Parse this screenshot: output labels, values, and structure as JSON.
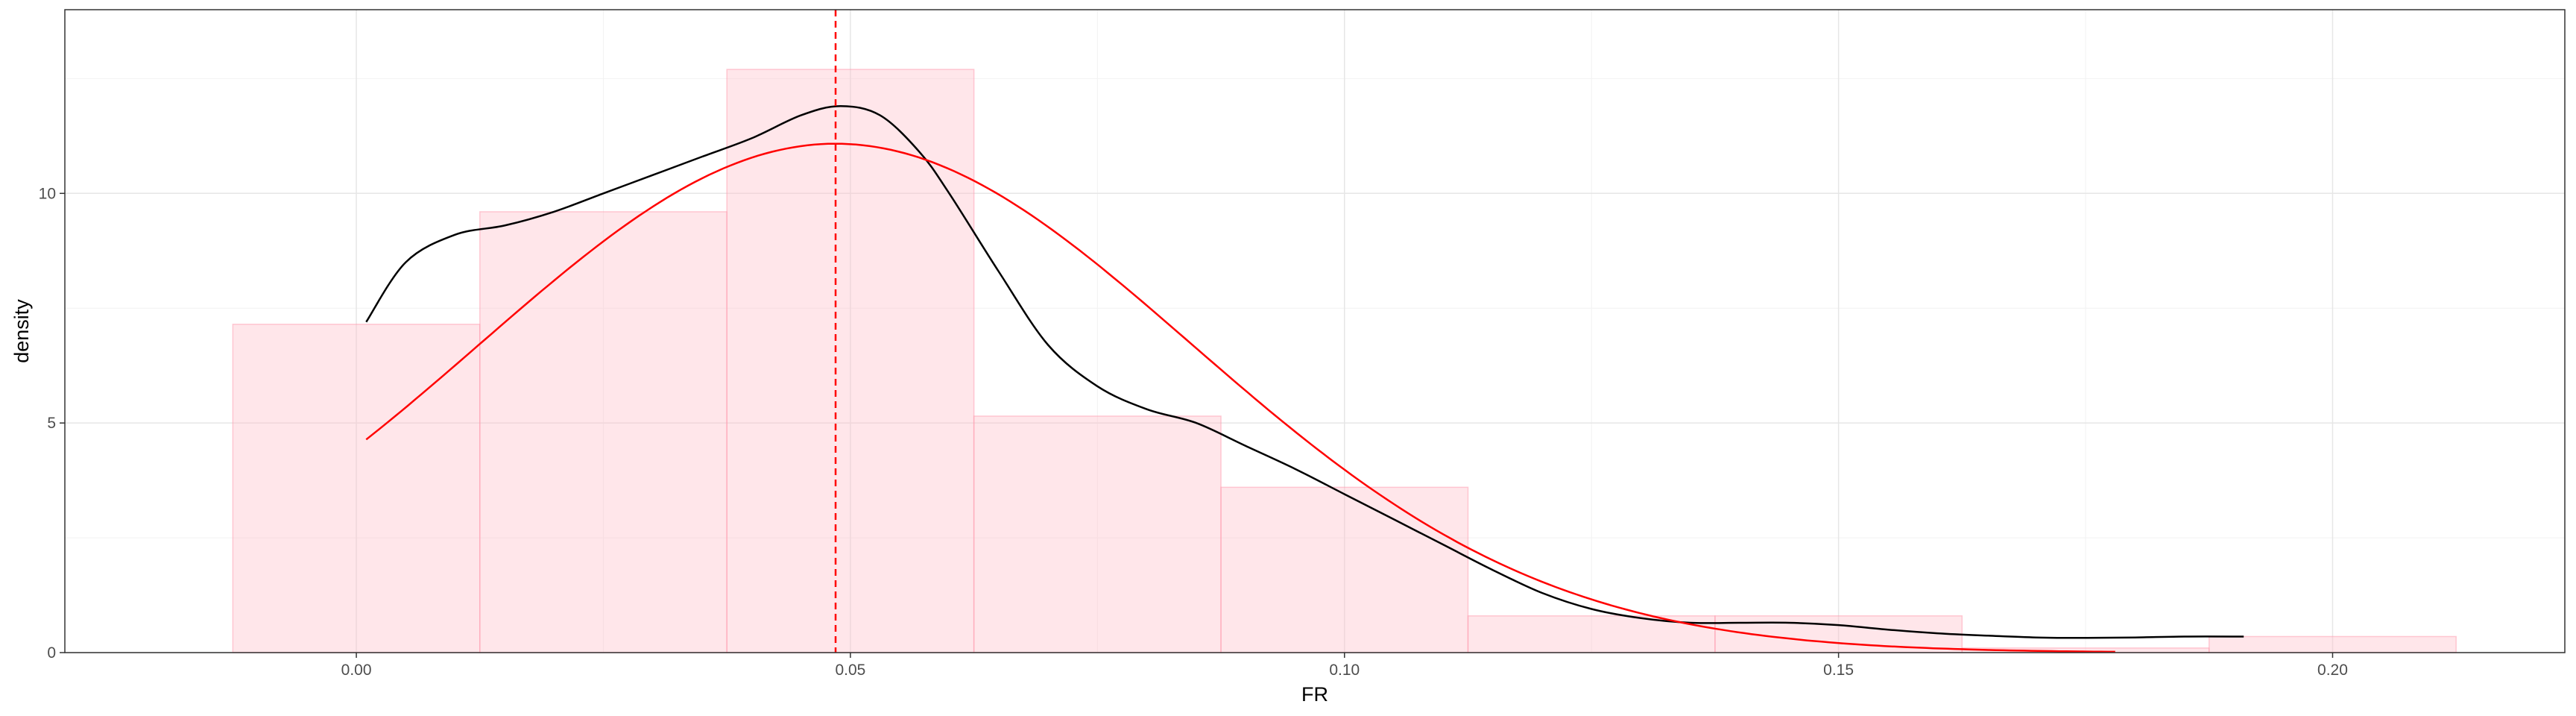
{
  "chart_data": {
    "type": "bar",
    "title": "",
    "xlabel": "FR",
    "ylabel": "density",
    "xlim": [
      -0.0295,
      0.2235
    ],
    "ylim": [
      0,
      14.0
    ],
    "grid": true,
    "legend": "none",
    "x_ticks": [
      0.0,
      0.05,
      0.1,
      0.15,
      0.2
    ],
    "x_tick_labels": [
      "0.00",
      "0.05",
      "0.10",
      "0.15",
      "0.20"
    ],
    "y_ticks": [
      0,
      5,
      10
    ],
    "y_tick_labels": [
      "0",
      "5",
      "10"
    ],
    "histogram": {
      "bin_width": 0.025,
      "fill": "#ffc0cb",
      "bins": [
        {
          "x0": -0.0125,
          "x1": 0.0125,
          "density": 7.15
        },
        {
          "x0": 0.0125,
          "x1": 0.0375,
          "density": 9.6
        },
        {
          "x0": 0.0375,
          "x1": 0.0625,
          "density": 12.7
        },
        {
          "x0": 0.0625,
          "x1": 0.0875,
          "density": 5.15
        },
        {
          "x0": 0.0875,
          "x1": 0.1125,
          "density": 3.6
        },
        {
          "x0": 0.1125,
          "x1": 0.1375,
          "density": 0.8
        },
        {
          "x0": 0.1375,
          "x1": 0.1625,
          "density": 0.8
        },
        {
          "x0": 0.1625,
          "x1": 0.1875,
          "density": 0.1
        },
        {
          "x0": 0.1875,
          "x1": 0.2125,
          "density": 0.35
        }
      ]
    },
    "kde_curve": {
      "color": "#000000",
      "x": [
        0.001,
        0.005,
        0.01,
        0.015,
        0.02,
        0.025,
        0.03,
        0.035,
        0.04,
        0.045,
        0.049,
        0.053,
        0.057,
        0.06,
        0.065,
        0.07,
        0.075,
        0.08,
        0.085,
        0.09,
        0.095,
        0.1,
        0.105,
        0.11,
        0.115,
        0.12,
        0.125,
        0.13,
        0.135,
        0.14,
        0.145,
        0.15,
        0.155,
        0.16,
        0.165,
        0.17,
        0.175,
        0.18,
        0.185,
        0.191
      ],
      "y": [
        7.2,
        8.5,
        9.1,
        9.3,
        9.6,
        10.0,
        10.4,
        10.8,
        11.2,
        11.7,
        11.9,
        11.7,
        10.9,
        10.0,
        8.3,
        6.7,
        5.8,
        5.3,
        5.0,
        4.5,
        4.0,
        3.45,
        2.9,
        2.35,
        1.8,
        1.3,
        0.95,
        0.75,
        0.65,
        0.65,
        0.65,
        0.6,
        0.5,
        0.42,
        0.37,
        0.33,
        0.32,
        0.33,
        0.35,
        0.35
      ]
    },
    "normal_curve": {
      "color": "#ff0000",
      "mean": 0.0485,
      "sd": 0.036,
      "x_range": [
        0.001,
        0.178
      ]
    },
    "mean_line": {
      "x": 0.0485,
      "color": "#ff0000",
      "style": "dashed"
    }
  }
}
